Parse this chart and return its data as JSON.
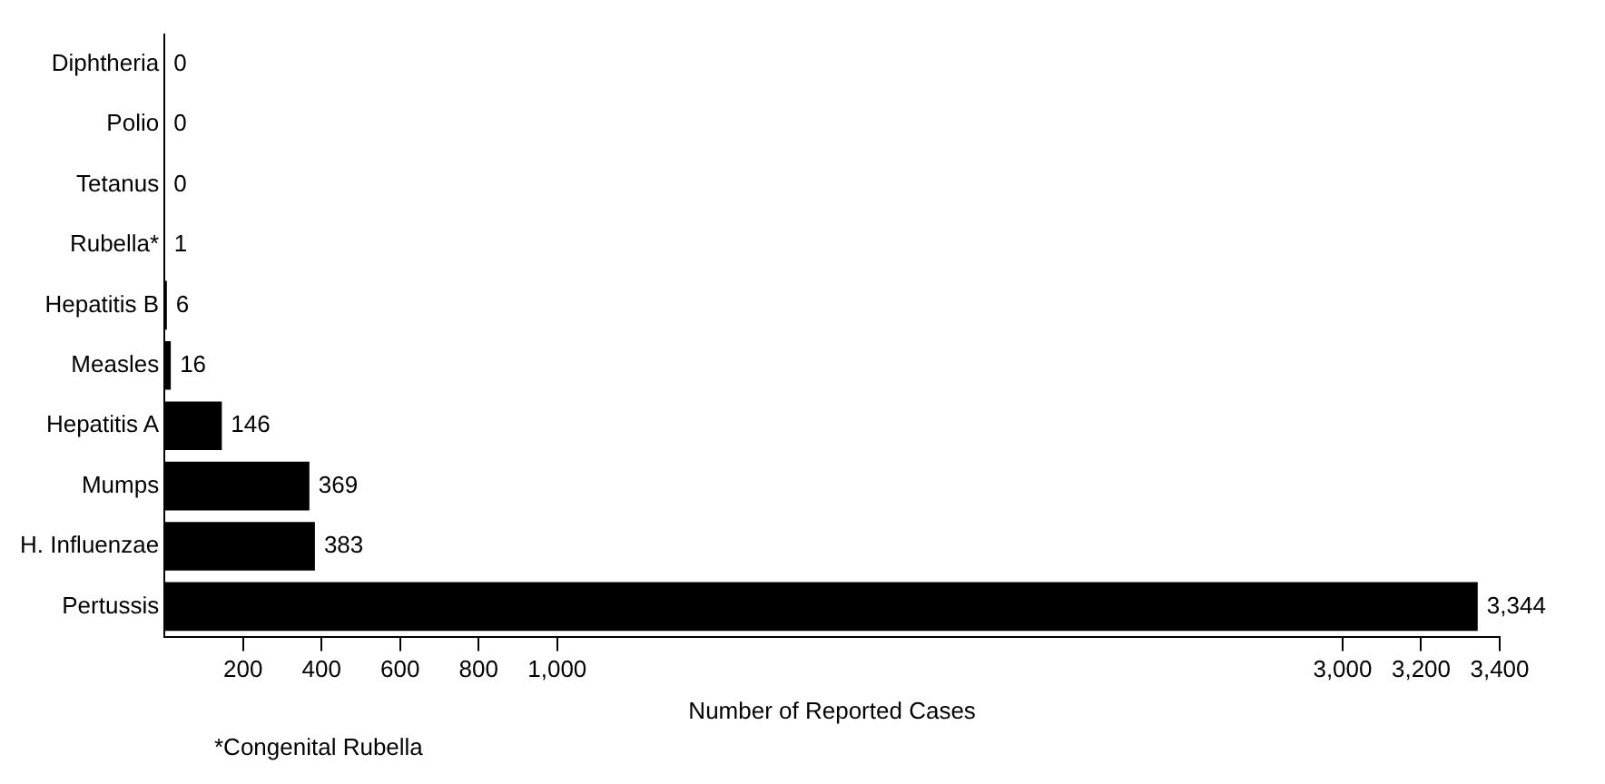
{
  "chart_data": {
    "type": "bar",
    "orientation": "horizontal",
    "categories": [
      "Diphtheria",
      "Polio",
      "Tetanus",
      "Rubella*",
      "Hepatitis B",
      "Measles",
      "Hepatitis A",
      "Mumps",
      "H. Influenzae",
      "Pertussis"
    ],
    "values": [
      0,
      0,
      0,
      1,
      6,
      16,
      146,
      369,
      383,
      3344
    ],
    "value_labels": [
      "0",
      "0",
      "0",
      "1",
      "6",
      "16",
      "146",
      "369",
      "383",
      "3,344"
    ],
    "color": "#000000",
    "xlabel": "Number of Reported Cases",
    "xlim": [
      0,
      3400
    ],
    "xticks": [
      200,
      400,
      600,
      800,
      {
        "value": 1000,
        "label": "1,000"
      },
      {
        "value": 3000,
        "label": "3,000"
      },
      {
        "value": 3200,
        "label": "3,200"
      },
      {
        "value": 3400,
        "label": "3,400"
      }
    ],
    "grid": false,
    "legend": false,
    "annotations": [
      "*Congenital Rubella"
    ]
  }
}
